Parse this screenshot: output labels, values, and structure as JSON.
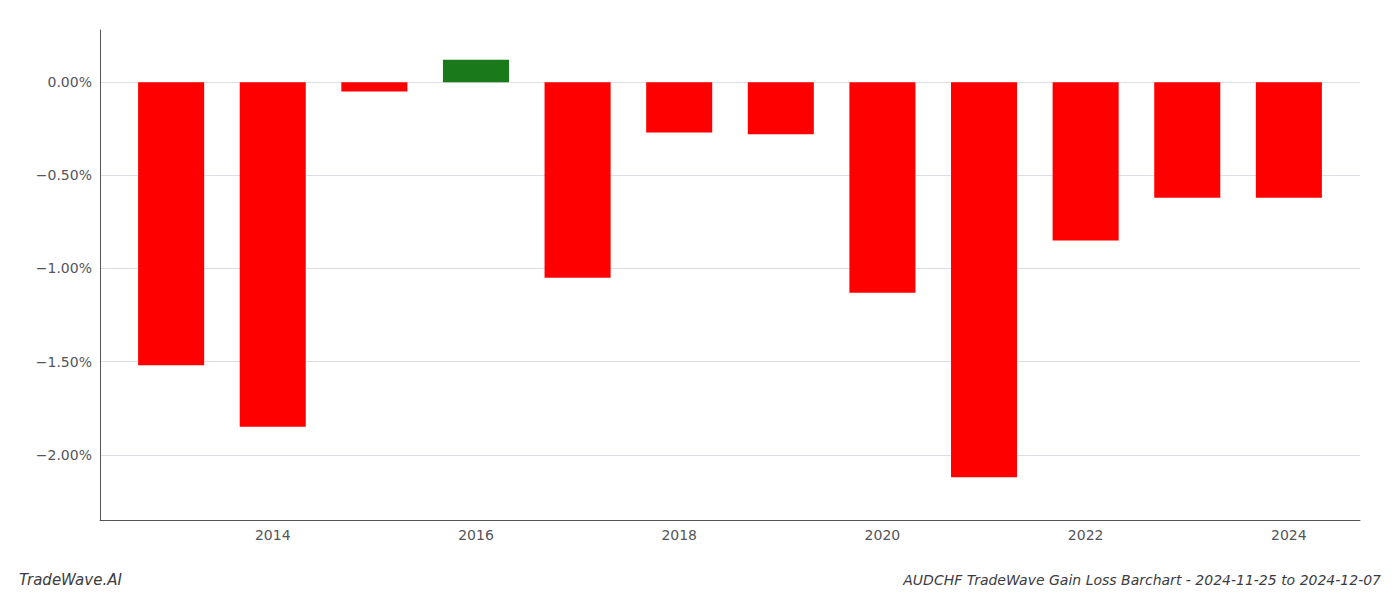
{
  "chart_data": {
    "type": "bar",
    "title": "AUDCHF TradeWave Gain Loss Barchart - 2024-11-25 to 2024-12-07",
    "annotations": [
      "TradeWave.AI"
    ],
    "x": [
      2013,
      2014,
      2015,
      2016,
      2017,
      2018,
      2019,
      2020,
      2021,
      2022,
      2023,
      2024
    ],
    "values": [
      -1.52,
      -1.85,
      -0.05,
      0.12,
      -1.05,
      -0.27,
      -0.28,
      -1.13,
      -2.12,
      -0.85,
      -0.62,
      -0.62
    ],
    "colors": [
      "#ff0000",
      "#ff0000",
      "#ff0000",
      "#1a7a1a",
      "#ff0000",
      "#ff0000",
      "#ff0000",
      "#ff0000",
      "#ff0000",
      "#ff0000",
      "#ff0000",
      "#ff0000"
    ],
    "xlim": [
      2012.3,
      2024.7
    ],
    "xticks": [
      2014,
      2016,
      2018,
      2020,
      2022,
      2024
    ],
    "ylim": [
      -2.35,
      0.28
    ],
    "yticks": [
      {
        "value": -2.0,
        "label": "−2.00%"
      },
      {
        "value": -1.5,
        "label": "−1.50%"
      },
      {
        "value": -1.0,
        "label": "−1.00%"
      },
      {
        "value": -0.5,
        "label": "−0.50%"
      },
      {
        "value": 0.0,
        "label": "0.00%"
      }
    ],
    "grid": true
  }
}
